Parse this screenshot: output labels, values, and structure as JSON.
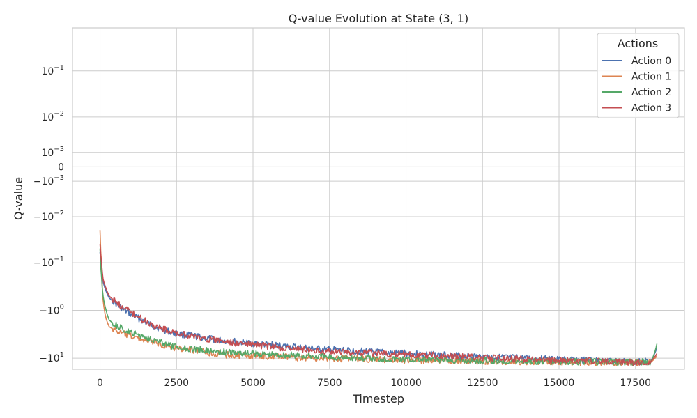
{
  "chart_data": {
    "type": "line",
    "title": "Q-value Evolution at State (3, 1)",
    "xlabel": "Timestep",
    "ylabel": "Q-value",
    "xlim": [
      -900,
      19100
    ],
    "yscale": "symlog",
    "linthresh": 0.001,
    "ylim": [
      -17,
      0.8
    ],
    "grid": true,
    "x_ticks": [
      0,
      2500,
      5000,
      7500,
      10000,
      12500,
      15000,
      17500
    ],
    "y_ticks": [
      {
        "value": 0.1,
        "base": "10",
        "exp": "−1"
      },
      {
        "value": 0.01,
        "base": "10",
        "exp": "−2"
      },
      {
        "value": 0.001,
        "base": "10",
        "exp": "−3"
      },
      {
        "value": 0,
        "base": "0",
        "exp": ""
      },
      {
        "value": -0.001,
        "base": "−10",
        "exp": "−3"
      },
      {
        "value": -0.01,
        "base": "−10",
        "exp": "−2"
      },
      {
        "value": -0.1,
        "base": "−10",
        "exp": "−1"
      },
      {
        "value": -1,
        "base": "−10",
        "exp": "0"
      },
      {
        "value": -10,
        "base": "−10",
        "exp": "1"
      }
    ],
    "legend": {
      "title": "Actions",
      "placement": "top-right"
    },
    "series": [
      {
        "name": "Action 0",
        "color": "#4c72b0",
        "x": [
          0,
          50,
          100,
          200,
          300,
          500,
          700,
          900,
          1200,
          1500,
          1800,
          2100,
          2400,
          2800,
          3200,
          3600,
          4000,
          4500,
          5000,
          5500,
          6000,
          6500,
          7000,
          7500,
          8000,
          8500,
          9000,
          9500,
          10000,
          10500,
          11000,
          11500,
          12000,
          12500,
          13000,
          13500,
          14000,
          14500,
          15000,
          15500,
          16000,
          16500,
          17000,
          17500,
          18000,
          18200
        ],
        "y": [
          -0.06,
          -0.12,
          -0.25,
          -0.4,
          -0.55,
          -0.7,
          -0.9,
          -1.1,
          -1.4,
          -1.8,
          -2.2,
          -2.6,
          -3.0,
          -3.3,
          -3.6,
          -4.0,
          -4.3,
          -4.6,
          -5.0,
          -5.3,
          -5.6,
          -6.0,
          -6.4,
          -6.7,
          -7.0,
          -7.2,
          -7.5,
          -7.8,
          -8.0,
          -8.3,
          -8.5,
          -8.8,
          -9.0,
          -9.3,
          -9.6,
          -9.9,
          -10.2,
          -10.5,
          -10.8,
          -11.0,
          -11.2,
          -11.5,
          -11.8,
          -12.0,
          -11.5,
          -6.0
        ]
      },
      {
        "name": "Action 1",
        "color": "#dd8452",
        "x": [
          0,
          50,
          100,
          200,
          300,
          500,
          700,
          900,
          1200,
          1500,
          1800,
          2100,
          2400,
          2800,
          3200,
          3600,
          4000,
          4500,
          5000,
          5500,
          6000,
          6500,
          7000,
          7500,
          8000,
          8500,
          9000,
          9500,
          10000,
          10500,
          11000,
          11500,
          12000,
          12500,
          13000,
          13500,
          14000,
          14500,
          15000,
          15500,
          16000,
          16500,
          17000,
          17500,
          18000,
          18200
        ],
        "y": [
          -0.02,
          -0.1,
          -0.6,
          -1.5,
          -2.2,
          -2.6,
          -3.0,
          -3.3,
          -3.8,
          -4.2,
          -4.8,
          -5.5,
          -6.0,
          -6.5,
          -7.0,
          -7.8,
          -8.5,
          -8.8,
          -9.0,
          -9.3,
          -9.5,
          -9.8,
          -10.0,
          -10.2,
          -10.3,
          -10.5,
          -10.6,
          -10.8,
          -11.0,
          -11.1,
          -11.2,
          -11.4,
          -11.5,
          -11.6,
          -11.7,
          -11.8,
          -11.9,
          -12.0,
          -12.1,
          -12.2,
          -12.3,
          -12.4,
          -12.5,
          -12.6,
          -12.2,
          -9.0
        ]
      },
      {
        "name": "Action 2",
        "color": "#55a868",
        "x": [
          0,
          50,
          100,
          200,
          300,
          500,
          700,
          900,
          1200,
          1500,
          1800,
          2100,
          2400,
          2800,
          3200,
          3600,
          4000,
          4500,
          5000,
          5500,
          6000,
          6500,
          7000,
          7500,
          8000,
          8500,
          9000,
          9500,
          10000,
          10500,
          11000,
          11500,
          12000,
          12500,
          13000,
          13500,
          14000,
          14500,
          15000,
          15500,
          16000,
          16500,
          17000,
          17500,
          18000,
          18200
        ],
        "y": [
          -0.05,
          -0.2,
          -0.5,
          -1.0,
          -1.6,
          -2.0,
          -2.4,
          -2.8,
          -3.2,
          -3.6,
          -4.2,
          -5.0,
          -5.8,
          -6.2,
          -6.6,
          -7.0,
          -7.4,
          -7.8,
          -8.0,
          -8.3,
          -8.6,
          -8.9,
          -9.2,
          -9.5,
          -9.8,
          -10.0,
          -10.2,
          -10.4,
          -10.6,
          -10.8,
          -11.0,
          -11.1,
          -11.2,
          -11.3,
          -11.4,
          -11.5,
          -11.6,
          -11.7,
          -11.8,
          -11.9,
          -12.0,
          -12.1,
          -12.2,
          -12.3,
          -12.0,
          -5.0
        ]
      },
      {
        "name": "Action 3",
        "color": "#c44e52",
        "x": [
          0,
          50,
          100,
          200,
          300,
          500,
          700,
          900,
          1200,
          1500,
          1800,
          2100,
          2400,
          2800,
          3200,
          3600,
          4000,
          4500,
          5000,
          5500,
          6000,
          6500,
          7000,
          7500,
          8000,
          8500,
          9000,
          9500,
          10000,
          10500,
          11000,
          11500,
          12000,
          12500,
          13000,
          13500,
          14000,
          14500,
          15000,
          15500,
          16000,
          16500,
          17000,
          17500,
          18000,
          18200
        ],
        "y": [
          -0.04,
          -0.1,
          -0.22,
          -0.35,
          -0.5,
          -0.65,
          -0.85,
          -1.0,
          -1.3,
          -1.7,
          -2.1,
          -2.5,
          -2.9,
          -3.3,
          -3.7,
          -4.1,
          -4.5,
          -4.9,
          -5.3,
          -5.7,
          -6.1,
          -6.5,
          -6.9,
          -7.2,
          -7.5,
          -7.7,
          -7.9,
          -8.1,
          -8.3,
          -8.6,
          -8.9,
          -9.2,
          -9.5,
          -9.8,
          -10.1,
          -10.4,
          -10.7,
          -11.0,
          -11.2,
          -11.4,
          -11.6,
          -11.8,
          -12.0,
          -12.2,
          -11.8,
          -8.0
        ]
      }
    ]
  }
}
